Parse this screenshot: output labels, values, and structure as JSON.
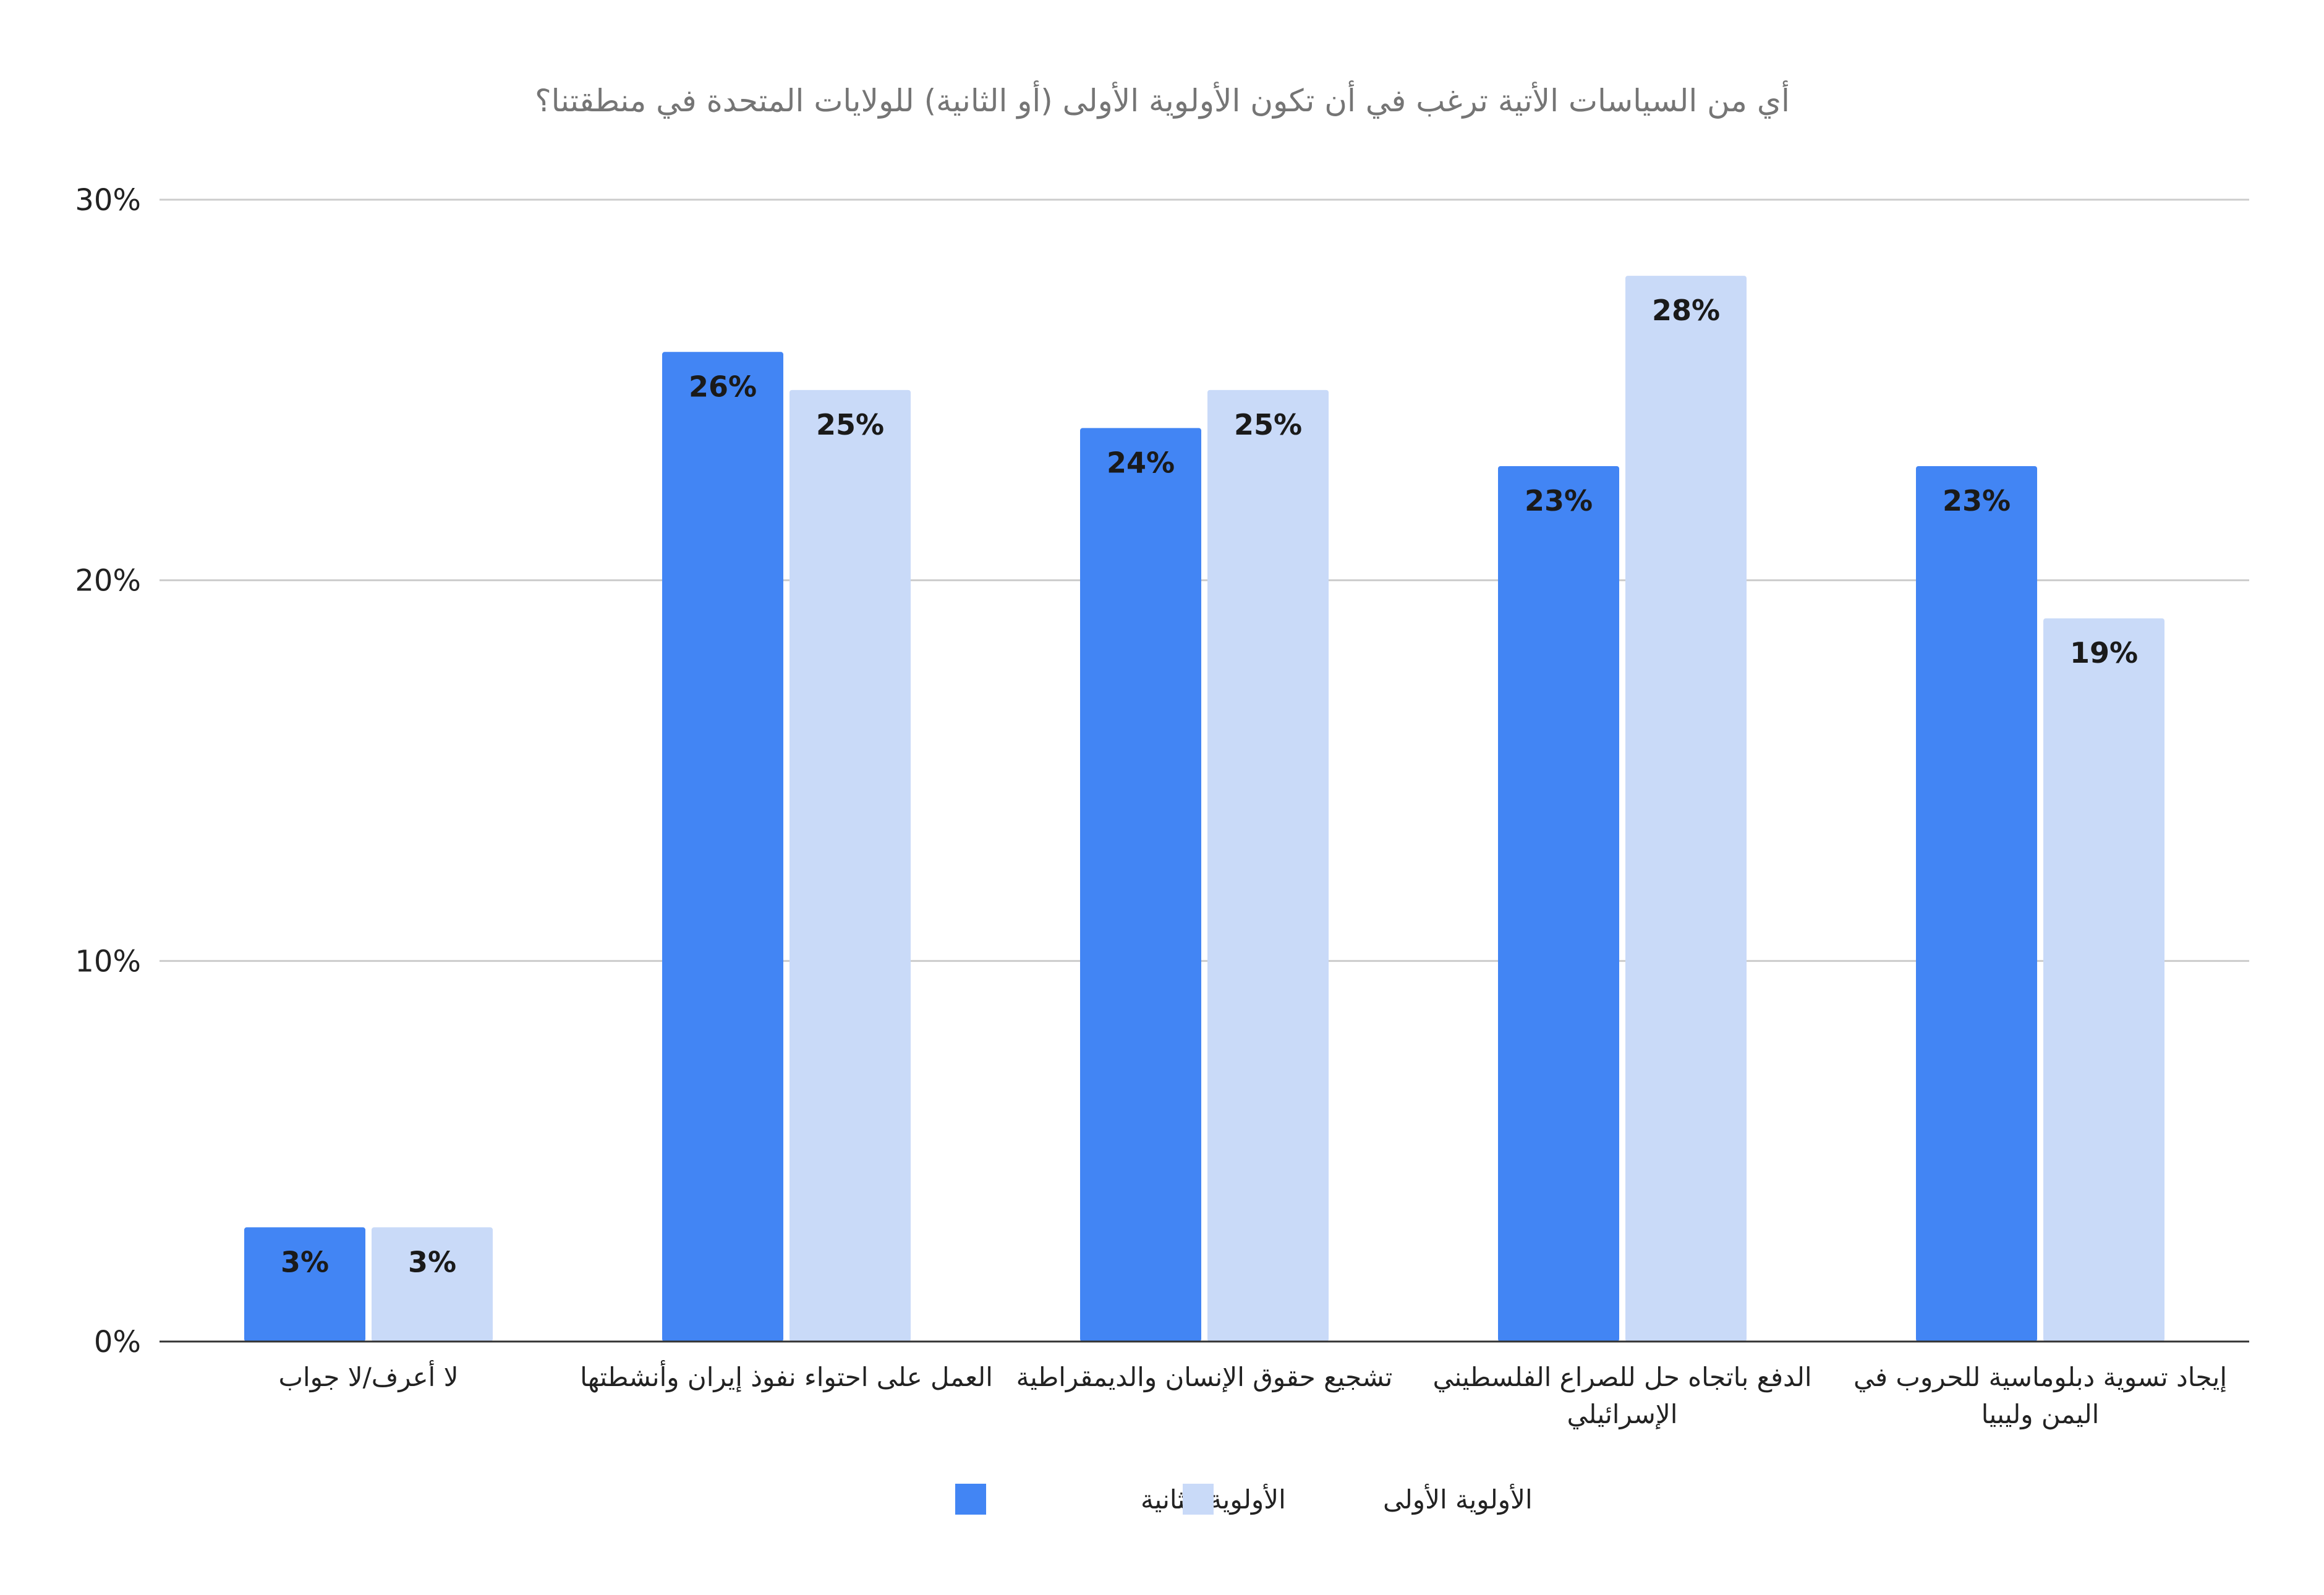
{
  "chart_data": {
    "type": "bar",
    "title": "أي من السياسات الأتية ترغب في أن تكون الأولوية الأولى (أو الثانية) للولايات المتحدة في منطقتنا؟",
    "categories": [
      [
        "لا أعرف/لا جواب"
      ],
      [
        "العمل على احتواء نفوذ إيران وأنشطتها"
      ],
      [
        "تشجيع حقوق الإنسان والديمقراطية"
      ],
      [
        "الدفع باتجاه حل للصراع الفلسطيني",
        "الإسرائيلي"
      ],
      [
        "إيجاد تسوية دبلوماسية للحروب في",
        "اليمن وليبيا"
      ]
    ],
    "series": [
      {
        "name": "الأولوية الثانية",
        "color": "#4285f4",
        "values": [
          3,
          26,
          24,
          23,
          23
        ],
        "labels": [
          "3%",
          "26%",
          "24%",
          "23%",
          "23%"
        ]
      },
      {
        "name": "الأولوية الأولى",
        "color": "#c9daf8",
        "values": [
          3,
          25,
          25,
          28,
          19
        ],
        "labels": [
          "3%",
          "25%",
          "25%",
          "28%",
          "19%"
        ]
      }
    ],
    "y_ticks": [
      {
        "value": 0,
        "label": "0%"
      },
      {
        "value": 10,
        "label": "10%"
      },
      {
        "value": 20,
        "label": "20%"
      },
      {
        "value": 30,
        "label": "30%"
      }
    ],
    "ylim": [
      0,
      30
    ],
    "grid": true,
    "legend_position": "bottom"
  }
}
